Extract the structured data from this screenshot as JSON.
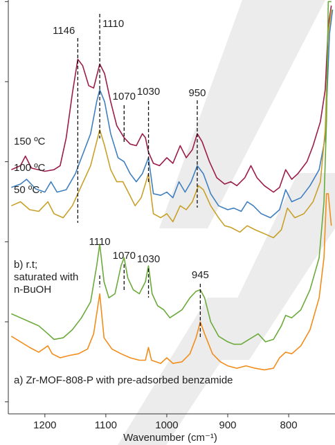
{
  "chart_data": {
    "type": "line",
    "xlabel": "Wavenumber (cm⁻¹)",
    "xlim": [
      1260,
      724
    ],
    "xticks": [
      1200,
      1100,
      1000,
      900,
      800
    ],
    "ylim": [
      -0.15,
      5.02
    ],
    "yticks": [
      0,
      1,
      2,
      3,
      4,
      5
    ],
    "upper_peaks": [
      1146,
      1110,
      1070,
      1030,
      950
    ],
    "lower_peaks": [
      1110,
      1070,
      1030,
      945
    ],
    "series": [
      {
        "name": "150 ºC",
        "color": "#9b1b4a",
        "x": [
          1255,
          1240,
          1232,
          1222,
          1200,
          1185,
          1175,
          1165,
          1155,
          1146,
          1138,
          1128,
          1120,
          1110,
          1102,
          1092,
          1082,
          1070,
          1060,
          1050,
          1040,
          1035,
          1030,
          1022,
          1012,
          1000,
          990,
          978,
          968,
          958,
          950,
          942,
          930,
          918,
          905,
          895,
          885,
          872,
          862,
          852,
          840,
          825,
          815,
          805,
          795,
          785,
          770,
          760,
          748,
          740,
          735,
          730
        ],
        "values": [
          2.9,
          2.95,
          3.07,
          2.92,
          2.88,
          2.9,
          2.95,
          3.3,
          3.85,
          4.28,
          4.2,
          3.95,
          3.92,
          4.22,
          4.1,
          3.75,
          3.45,
          3.3,
          3.22,
          3.2,
          3.35,
          3.3,
          3.12,
          2.98,
          2.95,
          3.05,
          2.98,
          3.2,
          3.05,
          3.15,
          3.35,
          3.25,
          3.0,
          2.8,
          2.72,
          2.75,
          2.7,
          2.8,
          2.95,
          2.8,
          2.7,
          2.62,
          2.68,
          2.9,
          2.78,
          2.85,
          3.0,
          3.2,
          3.5,
          3.9,
          4.7,
          4.95
        ]
      },
      {
        "name": "100 ºC",
        "color": "#3f7fbf",
        "x": [
          1255,
          1240,
          1230,
          1215,
          1200,
          1190,
          1180,
          1165,
          1150,
          1140,
          1125,
          1115,
          1110,
          1102,
          1092,
          1080,
          1070,
          1060,
          1050,
          1040,
          1030,
          1022,
          1010,
          1000,
          990,
          980,
          970,
          960,
          950,
          940,
          928,
          915,
          900,
          890,
          878,
          868,
          858,
          845,
          830,
          815,
          805,
          795,
          780,
          765,
          750,
          740,
          733,
          728
        ],
        "values": [
          2.68,
          2.72,
          2.78,
          2.66,
          2.62,
          2.75,
          2.62,
          2.65,
          2.85,
          3.05,
          3.35,
          3.75,
          3.9,
          3.75,
          3.35,
          3.05,
          3.0,
          2.85,
          2.75,
          2.85,
          3.05,
          2.6,
          2.58,
          2.62,
          2.55,
          2.75,
          2.62,
          2.75,
          2.95,
          2.85,
          2.6,
          2.45,
          2.4,
          2.42,
          2.38,
          2.5,
          2.45,
          2.35,
          2.3,
          2.4,
          2.65,
          2.5,
          2.55,
          2.7,
          2.9,
          3.3,
          4.6,
          4.9
        ]
      },
      {
        "name": "50 ºC.",
        "color": "#c8a028",
        "x": [
          1255,
          1240,
          1225,
          1210,
          1195,
          1185,
          1170,
          1155,
          1140,
          1125,
          1115,
          1110,
          1102,
          1092,
          1082,
          1072,
          1062,
          1052,
          1042,
          1030,
          1022,
          1010,
          1000,
          990,
          978,
          968,
          958,
          948,
          940,
          928,
          915,
          905,
          895,
          880,
          868,
          855,
          840,
          825,
          812,
          802,
          790,
          775,
          760,
          748,
          740,
          735,
          730
        ],
        "values": [
          2.45,
          2.5,
          2.4,
          2.38,
          2.5,
          2.35,
          2.3,
          2.45,
          2.7,
          2.95,
          3.25,
          3.4,
          3.2,
          2.9,
          2.75,
          2.75,
          2.6,
          2.45,
          2.55,
          2.85,
          2.35,
          2.3,
          2.35,
          2.25,
          2.45,
          2.4,
          2.5,
          2.7,
          2.65,
          2.45,
          2.3,
          2.2,
          2.18,
          2.12,
          2.2,
          2.15,
          2.1,
          2.05,
          2.15,
          2.42,
          2.3,
          2.35,
          2.5,
          2.75,
          3.4,
          4.6,
          4.9
        ]
      },
      {
        "name": "b) r.t; saturated with n-BuOH",
        "color": "#6aaa3a",
        "x": [
          1255,
          1240,
          1225,
          1210,
          1195,
          1185,
          1170,
          1155,
          1140,
          1125,
          1115,
          1110,
          1103,
          1095,
          1085,
          1075,
          1070,
          1064,
          1055,
          1045,
          1035,
          1030,
          1024,
          1015,
          1005,
          995,
          985,
          975,
          962,
          952,
          945,
          938,
          928,
          915,
          900,
          890,
          878,
          865,
          850,
          838,
          825,
          812,
          805,
          795,
          780,
          765,
          750,
          742,
          738,
          735,
          730
        ],
        "values": [
          1.1,
          1.05,
          1.0,
          0.95,
          0.85,
          0.78,
          0.8,
          0.9,
          1.05,
          1.25,
          1.7,
          1.97,
          1.5,
          1.3,
          1.35,
          1.7,
          1.8,
          1.55,
          1.4,
          1.35,
          1.5,
          1.7,
          1.35,
          1.2,
          1.15,
          1.05,
          1.1,
          1.15,
          1.3,
          1.38,
          1.4,
          1.3,
          1.0,
          0.82,
          0.75,
          0.72,
          0.72,
          0.78,
          0.85,
          0.75,
          0.78,
          0.95,
          1.08,
          1.05,
          1.15,
          1.4,
          1.8,
          2.5,
          3.5,
          5.0,
          5.0
        ]
      },
      {
        "name": "a) Zr-MOF-808-P with pre-adsorbed benzamide",
        "color": "#f28c1a",
        "x": [
          1255,
          1240,
          1225,
          1210,
          1195,
          1188,
          1175,
          1160,
          1145,
          1130,
          1120,
          1110,
          1103,
          1090,
          1075,
          1060,
          1045,
          1035,
          1030,
          1025,
          1010,
          1000,
          990,
          975,
          962,
          952,
          945,
          938,
          925,
          912,
          900,
          885,
          870,
          855,
          840,
          825,
          815,
          805,
          795,
          780,
          765,
          750,
          742,
          738,
          735,
          730
        ],
        "values": [
          0.82,
          0.75,
          0.68,
          0.62,
          0.7,
          0.6,
          0.55,
          0.58,
          0.6,
          0.66,
          0.85,
          1.35,
          0.8,
          0.66,
          0.6,
          0.55,
          0.52,
          0.52,
          0.68,
          0.52,
          0.48,
          0.55,
          0.48,
          0.5,
          0.6,
          0.8,
          1.0,
          0.85,
          0.6,
          0.5,
          0.45,
          0.42,
          0.45,
          0.42,
          0.4,
          0.42,
          0.55,
          0.62,
          0.6,
          0.7,
          0.9,
          1.3,
          1.8,
          2.6,
          2.6,
          2.2
        ]
      }
    ]
  }
}
